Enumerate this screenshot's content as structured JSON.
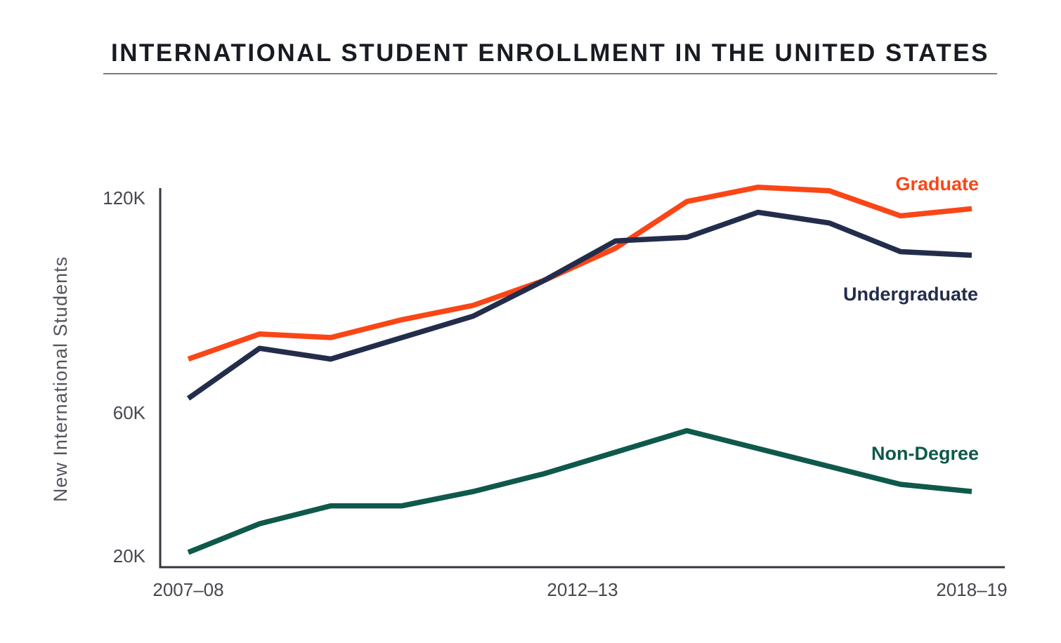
{
  "title": "INTERNATIONAL STUDENT ENROLLMENT IN THE UNITED STATES",
  "chart_data": {
    "type": "line",
    "title": "INTERNATIONAL STUDENT ENROLLMENT IN THE UNITED STATES",
    "ylabel": "New International Students",
    "xlabel": "",
    "units": "thousands of students",
    "n_points": 12,
    "x_range_labels": [
      "2007–08",
      "2018–19"
    ],
    "x_tick_labels": [
      "2007–08",
      "2012–13",
      "2018–19"
    ],
    "y_ticks": [
      {
        "label": "120K",
        "value": 120
      },
      {
        "label": "60K",
        "value": 60
      },
      {
        "label": "20K",
        "value": 20
      }
    ],
    "ylim_plotted": [
      16.5,
      122.5
    ],
    "grid": false,
    "legend_position": "inline-right-of-lines",
    "series": [
      {
        "name": "Graduate",
        "color": "#FA4616",
        "values": [
          75,
          82,
          81,
          86,
          90,
          97,
          106,
          119,
          123,
          122,
          115,
          117
        ]
      },
      {
        "name": "Undergraduate",
        "color": "#232D4B",
        "values": [
          64,
          78,
          75,
          81,
          87,
          97,
          108,
          109,
          116,
          113,
          105,
          104
        ]
      },
      {
        "name": "Non-Degree",
        "color": "#0E594B",
        "values": [
          21,
          29,
          34,
          34,
          38,
          43,
          49,
          55,
          50,
          45,
          40,
          38
        ]
      }
    ]
  }
}
